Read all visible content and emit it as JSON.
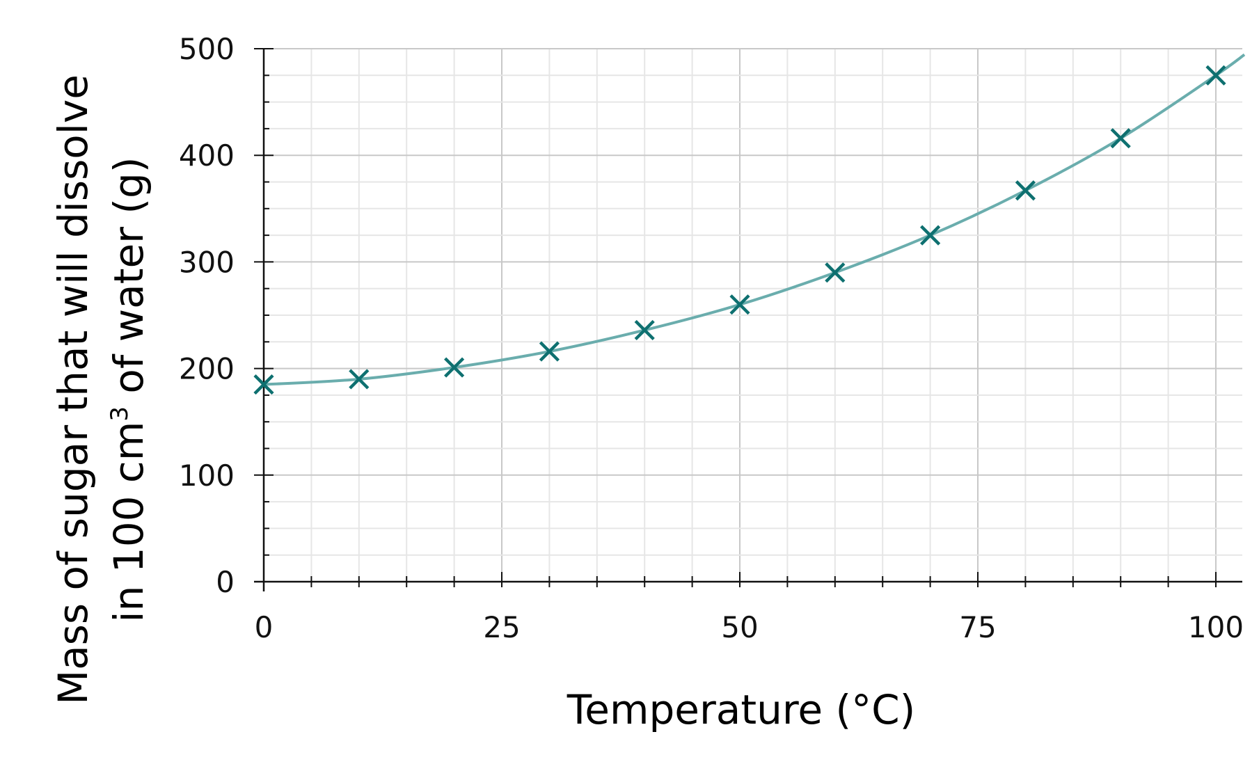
{
  "chart_data": {
    "type": "line",
    "title": "",
    "xlabel": "Temperature (°C)",
    "ylabel_line1": "Mass of sugar  that will dissolve",
    "ylabel_line2_pre": "in 100 cm",
    "ylabel_line2_sup": "3",
    "ylabel_line2_post": " of water (g)",
    "xlim": [
      0,
      103
    ],
    "ylim": [
      0,
      500
    ],
    "xticks": [
      0,
      25,
      50,
      75,
      100
    ],
    "yticks": [
      0,
      100,
      200,
      300,
      400,
      500
    ],
    "xtick_labels": [
      "0",
      "25",
      "50",
      "75",
      "100"
    ],
    "ytick_labels": [
      "0",
      "100",
      "200",
      "300",
      "400",
      "500"
    ],
    "x_minor_step": 5,
    "y_minor_step": 25,
    "grid": true,
    "marker": "cross",
    "line_color": "#6aadad",
    "marker_color": "#0e7070",
    "series": [
      {
        "x": [
          0,
          10,
          20,
          30,
          40,
          50,
          60,
          70,
          80,
          90,
          100
        ],
        "y": [
          185,
          190,
          201,
          216,
          236,
          260,
          290,
          325,
          367,
          416,
          475
        ]
      }
    ]
  }
}
